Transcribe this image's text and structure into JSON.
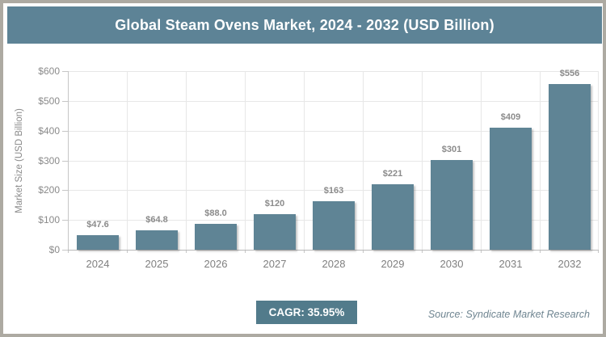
{
  "title": "Global Steam Ovens Market, 2024 - 2032 (USD Billion)",
  "colors": {
    "accent": "#5d8396",
    "bar": "#5f8495",
    "badge_bg": "#527b8b",
    "frame_border": "#adaaa2",
    "gridline": "#e7e7e7",
    "label_gray": "#8a8a8a",
    "source_text": "#6f8591"
  },
  "chart_data": {
    "type": "bar",
    "title": "Global Steam Ovens Market, 2024 - 2032 (USD Billion)",
    "categories": [
      "2024",
      "2025",
      "2026",
      "2027",
      "2028",
      "2029",
      "2030",
      "2031",
      "2032"
    ],
    "values": [
      47.6,
      64.8,
      88.0,
      120,
      163,
      221,
      301,
      409,
      556
    ],
    "value_labels": [
      "$47.6",
      "$64.8",
      "$88.0",
      "$120",
      "$163",
      "$221",
      "$301",
      "$409",
      "$556"
    ],
    "xlabel": "",
    "ylabel": "Market Size (USD Billion)",
    "ylim": [
      0,
      600
    ],
    "y_ticks": [
      0,
      100,
      200,
      300,
      400,
      500,
      600
    ],
    "y_tick_labels": [
      "$0",
      "$100",
      "$200",
      "$300",
      "$400",
      "$500",
      "$600"
    ],
    "grid": "both",
    "legend_position": "none"
  },
  "footer": {
    "cagr_label": "CAGR: 35.95%",
    "source": "Source: Syndicate Market Research"
  }
}
